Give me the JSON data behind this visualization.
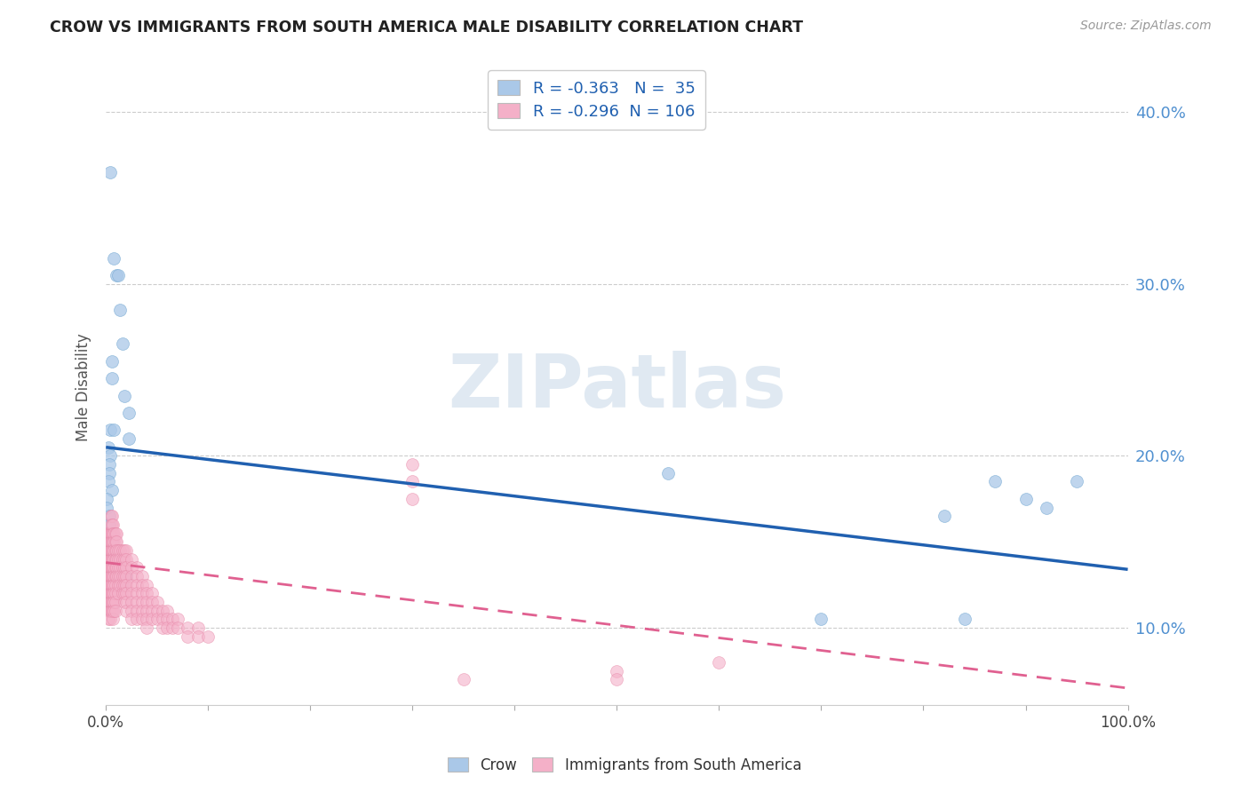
{
  "title": "CROW VS IMMIGRANTS FROM SOUTH AMERICA MALE DISABILITY CORRELATION CHART",
  "source": "Source: ZipAtlas.com",
  "ylabel": "Male Disability",
  "yticks": [
    0.1,
    0.2,
    0.3,
    0.4
  ],
  "ytick_labels": [
    "10.0%",
    "20.0%",
    "30.0%",
    "40.0%"
  ],
  "xlim": [
    0.0,
    1.0
  ],
  "ylim": [
    0.055,
    0.425
  ],
  "crow_R": -0.363,
  "crow_N": 35,
  "imm_R": -0.296,
  "imm_N": 106,
  "crow_color": "#aac8e8",
  "crow_edge_color": "#7aacd4",
  "crow_line_color": "#2060b0",
  "imm_color": "#f4b0c8",
  "imm_edge_color": "#e888a8",
  "imm_line_color": "#e06090",
  "watermark_text": "ZIPatlas",
  "crow_scatter": [
    [
      0.004,
      0.365
    ],
    [
      0.008,
      0.315
    ],
    [
      0.01,
      0.305
    ],
    [
      0.012,
      0.305
    ],
    [
      0.014,
      0.285
    ],
    [
      0.016,
      0.265
    ],
    [
      0.006,
      0.255
    ],
    [
      0.006,
      0.245
    ],
    [
      0.018,
      0.235
    ],
    [
      0.022,
      0.225
    ],
    [
      0.004,
      0.215
    ],
    [
      0.008,
      0.215
    ],
    [
      0.022,
      0.21
    ],
    [
      0.002,
      0.205
    ],
    [
      0.004,
      0.2
    ],
    [
      0.003,
      0.195
    ],
    [
      0.003,
      0.19
    ],
    [
      0.002,
      0.185
    ],
    [
      0.006,
      0.18
    ],
    [
      0.001,
      0.175
    ],
    [
      0.001,
      0.17
    ],
    [
      0.003,
      0.165
    ],
    [
      0.003,
      0.16
    ],
    [
      0.004,
      0.155
    ],
    [
      0.006,
      0.15
    ],
    [
      0.008,
      0.145
    ],
    [
      0.01,
      0.14
    ],
    [
      0.012,
      0.135
    ],
    [
      0.014,
      0.13
    ],
    [
      0.016,
      0.125
    ],
    [
      0.02,
      0.13
    ],
    [
      0.55,
      0.19
    ],
    [
      0.7,
      0.105
    ],
    [
      0.82,
      0.165
    ],
    [
      0.84,
      0.105
    ],
    [
      0.87,
      0.185
    ],
    [
      0.9,
      0.175
    ],
    [
      0.92,
      0.17
    ],
    [
      0.95,
      0.185
    ]
  ],
  "imm_scatter": [
    [
      0.001,
      0.155
    ],
    [
      0.001,
      0.15
    ],
    [
      0.001,
      0.145
    ],
    [
      0.001,
      0.14
    ],
    [
      0.001,
      0.135
    ],
    [
      0.001,
      0.13
    ],
    [
      0.001,
      0.125
    ],
    [
      0.001,
      0.12
    ],
    [
      0.002,
      0.155
    ],
    [
      0.002,
      0.15
    ],
    [
      0.002,
      0.145
    ],
    [
      0.002,
      0.14
    ],
    [
      0.002,
      0.135
    ],
    [
      0.002,
      0.13
    ],
    [
      0.002,
      0.125
    ],
    [
      0.002,
      0.12
    ],
    [
      0.002,
      0.115
    ],
    [
      0.002,
      0.11
    ],
    [
      0.002,
      0.105
    ],
    [
      0.003,
      0.155
    ],
    [
      0.003,
      0.15
    ],
    [
      0.003,
      0.145
    ],
    [
      0.003,
      0.14
    ],
    [
      0.003,
      0.135
    ],
    [
      0.003,
      0.13
    ],
    [
      0.003,
      0.125
    ],
    [
      0.003,
      0.12
    ],
    [
      0.003,
      0.115
    ],
    [
      0.003,
      0.11
    ],
    [
      0.004,
      0.155
    ],
    [
      0.004,
      0.15
    ],
    [
      0.004,
      0.145
    ],
    [
      0.004,
      0.14
    ],
    [
      0.004,
      0.135
    ],
    [
      0.004,
      0.13
    ],
    [
      0.004,
      0.125
    ],
    [
      0.004,
      0.12
    ],
    [
      0.004,
      0.115
    ],
    [
      0.004,
      0.11
    ],
    [
      0.004,
      0.105
    ],
    [
      0.005,
      0.165
    ],
    [
      0.005,
      0.16
    ],
    [
      0.005,
      0.155
    ],
    [
      0.005,
      0.15
    ],
    [
      0.005,
      0.145
    ],
    [
      0.005,
      0.14
    ],
    [
      0.005,
      0.135
    ],
    [
      0.005,
      0.13
    ],
    [
      0.005,
      0.125
    ],
    [
      0.005,
      0.12
    ],
    [
      0.005,
      0.115
    ],
    [
      0.005,
      0.11
    ],
    [
      0.006,
      0.165
    ],
    [
      0.006,
      0.16
    ],
    [
      0.006,
      0.155
    ],
    [
      0.006,
      0.15
    ],
    [
      0.006,
      0.145
    ],
    [
      0.006,
      0.14
    ],
    [
      0.006,
      0.135
    ],
    [
      0.006,
      0.13
    ],
    [
      0.006,
      0.125
    ],
    [
      0.006,
      0.12
    ],
    [
      0.006,
      0.115
    ],
    [
      0.006,
      0.11
    ],
    [
      0.007,
      0.16
    ],
    [
      0.007,
      0.155
    ],
    [
      0.007,
      0.15
    ],
    [
      0.007,
      0.145
    ],
    [
      0.007,
      0.14
    ],
    [
      0.007,
      0.135
    ],
    [
      0.007,
      0.13
    ],
    [
      0.007,
      0.125
    ],
    [
      0.007,
      0.12
    ],
    [
      0.007,
      0.115
    ],
    [
      0.007,
      0.11
    ],
    [
      0.007,
      0.105
    ],
    [
      0.008,
      0.155
    ],
    [
      0.008,
      0.15
    ],
    [
      0.008,
      0.145
    ],
    [
      0.008,
      0.14
    ],
    [
      0.008,
      0.135
    ],
    [
      0.008,
      0.13
    ],
    [
      0.008,
      0.125
    ],
    [
      0.008,
      0.12
    ],
    [
      0.008,
      0.115
    ],
    [
      0.008,
      0.11
    ],
    [
      0.009,
      0.155
    ],
    [
      0.009,
      0.15
    ],
    [
      0.009,
      0.145
    ],
    [
      0.009,
      0.14
    ],
    [
      0.009,
      0.135
    ],
    [
      0.009,
      0.13
    ],
    [
      0.009,
      0.125
    ],
    [
      0.009,
      0.12
    ],
    [
      0.009,
      0.115
    ],
    [
      0.009,
      0.11
    ],
    [
      0.01,
      0.155
    ],
    [
      0.01,
      0.15
    ],
    [
      0.01,
      0.145
    ],
    [
      0.01,
      0.14
    ],
    [
      0.01,
      0.135
    ],
    [
      0.01,
      0.13
    ],
    [
      0.012,
      0.145
    ],
    [
      0.012,
      0.14
    ],
    [
      0.012,
      0.135
    ],
    [
      0.012,
      0.13
    ],
    [
      0.012,
      0.125
    ],
    [
      0.012,
      0.12
    ],
    [
      0.014,
      0.145
    ],
    [
      0.014,
      0.14
    ],
    [
      0.014,
      0.135
    ],
    [
      0.014,
      0.13
    ],
    [
      0.014,
      0.125
    ],
    [
      0.016,
      0.145
    ],
    [
      0.016,
      0.14
    ],
    [
      0.016,
      0.135
    ],
    [
      0.016,
      0.13
    ],
    [
      0.016,
      0.125
    ],
    [
      0.016,
      0.12
    ],
    [
      0.018,
      0.145
    ],
    [
      0.018,
      0.14
    ],
    [
      0.018,
      0.135
    ],
    [
      0.018,
      0.13
    ],
    [
      0.018,
      0.125
    ],
    [
      0.018,
      0.12
    ],
    [
      0.018,
      0.115
    ],
    [
      0.02,
      0.145
    ],
    [
      0.02,
      0.14
    ],
    [
      0.02,
      0.135
    ],
    [
      0.02,
      0.13
    ],
    [
      0.02,
      0.125
    ],
    [
      0.02,
      0.12
    ],
    [
      0.02,
      0.115
    ],
    [
      0.02,
      0.11
    ],
    [
      0.025,
      0.14
    ],
    [
      0.025,
      0.135
    ],
    [
      0.025,
      0.13
    ],
    [
      0.025,
      0.125
    ],
    [
      0.025,
      0.12
    ],
    [
      0.025,
      0.115
    ],
    [
      0.025,
      0.11
    ],
    [
      0.025,
      0.105
    ],
    [
      0.03,
      0.135
    ],
    [
      0.03,
      0.13
    ],
    [
      0.03,
      0.125
    ],
    [
      0.03,
      0.12
    ],
    [
      0.03,
      0.115
    ],
    [
      0.03,
      0.11
    ],
    [
      0.03,
      0.105
    ],
    [
      0.035,
      0.13
    ],
    [
      0.035,
      0.125
    ],
    [
      0.035,
      0.12
    ],
    [
      0.035,
      0.115
    ],
    [
      0.035,
      0.11
    ],
    [
      0.035,
      0.105
    ],
    [
      0.04,
      0.125
    ],
    [
      0.04,
      0.12
    ],
    [
      0.04,
      0.115
    ],
    [
      0.04,
      0.11
    ],
    [
      0.04,
      0.105
    ],
    [
      0.04,
      0.1
    ],
    [
      0.045,
      0.12
    ],
    [
      0.045,
      0.115
    ],
    [
      0.045,
      0.11
    ],
    [
      0.045,
      0.105
    ],
    [
      0.05,
      0.115
    ],
    [
      0.05,
      0.11
    ],
    [
      0.05,
      0.105
    ],
    [
      0.055,
      0.11
    ],
    [
      0.055,
      0.105
    ],
    [
      0.055,
      0.1
    ],
    [
      0.06,
      0.11
    ],
    [
      0.06,
      0.105
    ],
    [
      0.06,
      0.1
    ],
    [
      0.065,
      0.105
    ],
    [
      0.065,
      0.1
    ],
    [
      0.07,
      0.105
    ],
    [
      0.07,
      0.1
    ],
    [
      0.08,
      0.1
    ],
    [
      0.08,
      0.095
    ],
    [
      0.09,
      0.1
    ],
    [
      0.09,
      0.095
    ],
    [
      0.1,
      0.095
    ],
    [
      0.3,
      0.195
    ],
    [
      0.3,
      0.185
    ],
    [
      0.3,
      0.175
    ],
    [
      0.35,
      0.07
    ],
    [
      0.5,
      0.075
    ],
    [
      0.5,
      0.07
    ],
    [
      0.6,
      0.08
    ]
  ],
  "crow_line_x": [
    0.0,
    1.0
  ],
  "crow_line_y": [
    0.205,
    0.134
  ],
  "imm_line_x": [
    0.0,
    1.0
  ],
  "imm_line_y": [
    0.138,
    0.065
  ]
}
